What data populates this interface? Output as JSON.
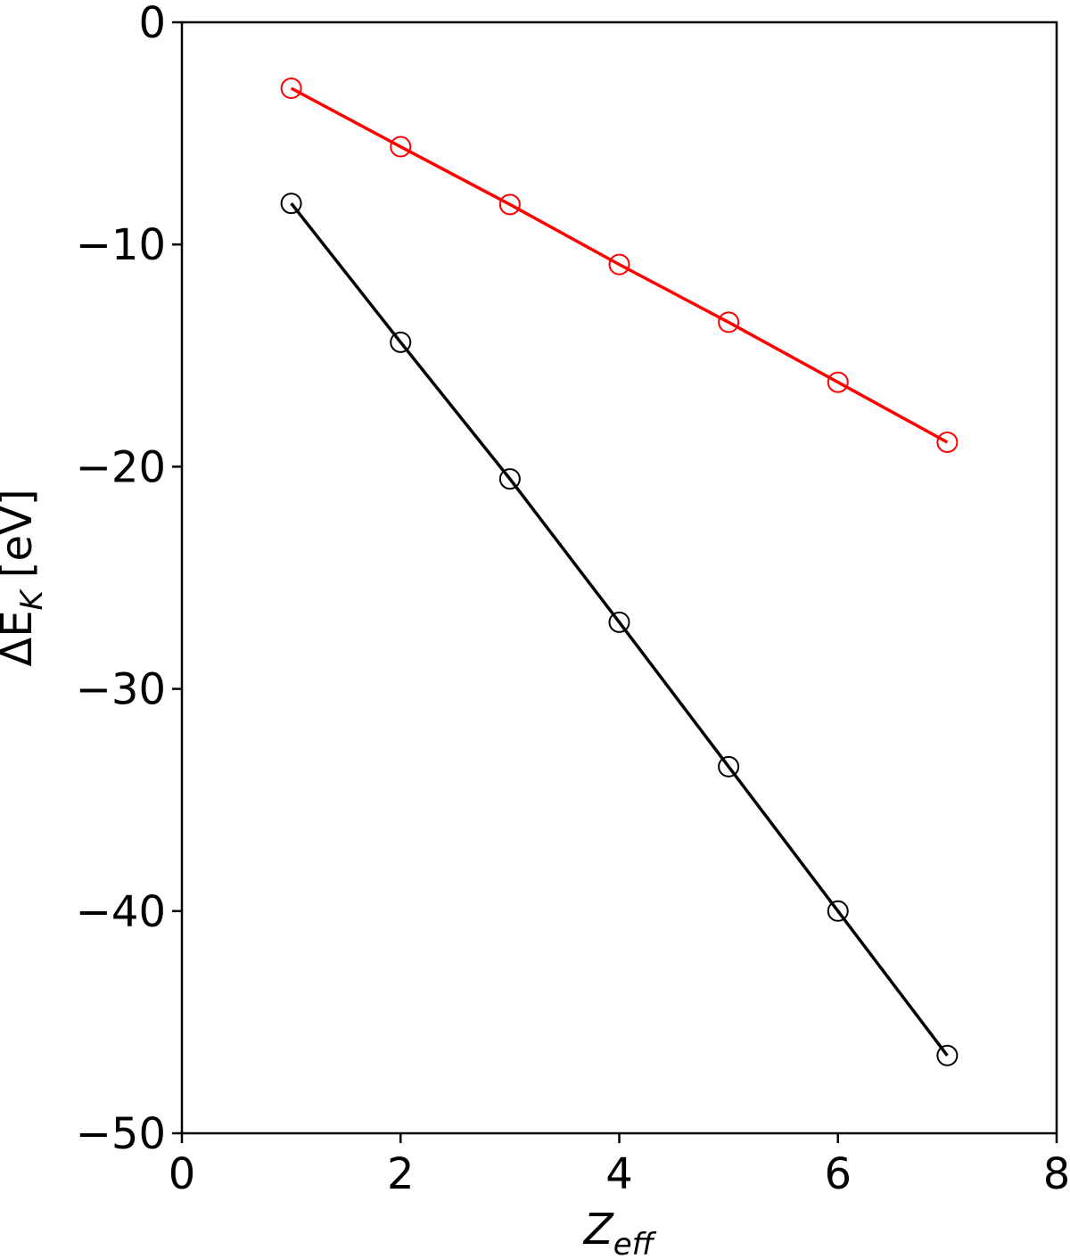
{
  "chart_data": {
    "type": "line",
    "xlabel": [
      "Z",
      "eff"
    ],
    "ylabel": [
      "ΔE",
      "K",
      "[eV]"
    ],
    "x": [
      1,
      2,
      3,
      4,
      5,
      6,
      7
    ],
    "series": [
      {
        "color": "#ff0000",
        "values": [
          -2.97,
          -5.6,
          -8.2,
          -10.9,
          -13.5,
          -16.2,
          -18.9
        ]
      },
      {
        "color": "#000000",
        "values": [
          -8.15,
          -14.4,
          -20.55,
          -27.0,
          -33.5,
          -40.0,
          -46.5
        ]
      }
    ],
    "xlim": [
      0,
      8
    ],
    "ylim": [
      -50,
      0
    ],
    "xticks": [
      0,
      2,
      4,
      6,
      8
    ],
    "yticks": [
      0,
      {
        "value": -10,
        "label": "−10"
      },
      {
        "value": -20,
        "label": "−20"
      },
      {
        "value": -30,
        "label": "−30"
      },
      {
        "value": -40,
        "label": "−40"
      },
      {
        "value": -50,
        "label": "−50"
      }
    ],
    "marker": "open-circle"
  }
}
